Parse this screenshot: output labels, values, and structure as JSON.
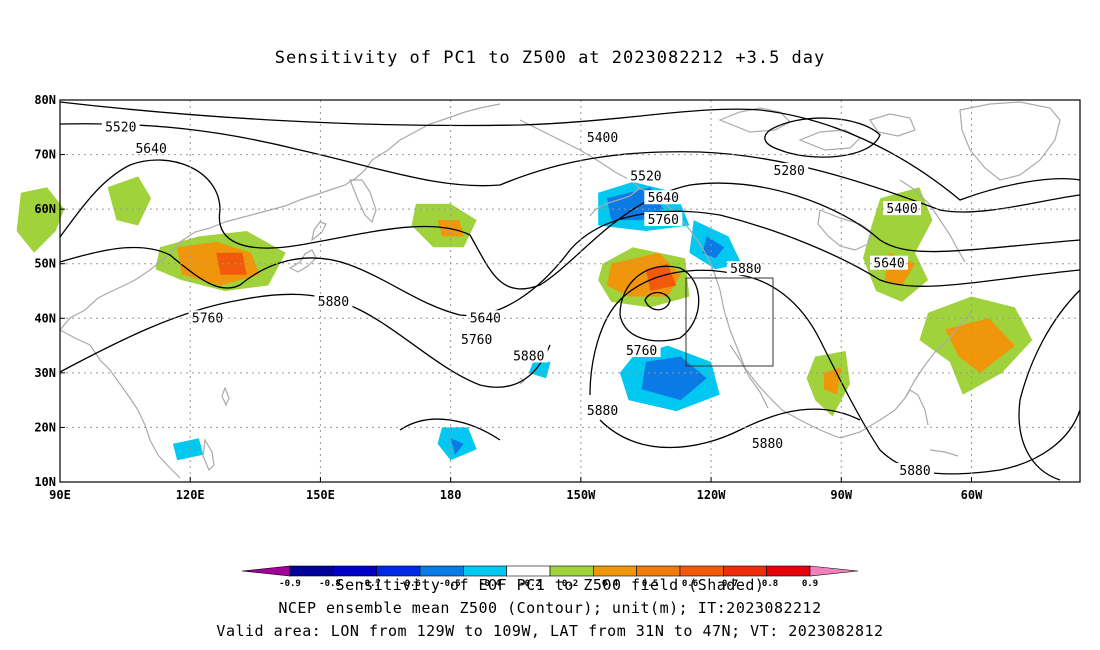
{
  "title": "Sensitivity of PC1 to Z500 at 2023082212 +3.5 day",
  "map": {
    "lon_labels": [
      "90E",
      "120E",
      "150E",
      "180",
      "150W",
      "120W",
      "90W",
      "60W"
    ],
    "lat_labels": [
      "80N",
      "70N",
      "60N",
      "50N",
      "40N",
      "30N",
      "20N",
      "10N"
    ],
    "contour_labels": [
      {
        "text": "5520",
        "lon": 104,
        "lat": 75
      },
      {
        "text": "5640",
        "lon": 111,
        "lat": 71
      },
      {
        "text": "5400",
        "lon": -145,
        "lat": 73
      },
      {
        "text": "5520",
        "lon": -135,
        "lat": 66
      },
      {
        "text": "5280",
        "lon": -102,
        "lat": 67
      },
      {
        "text": "5640",
        "lon": -131,
        "lat": 62
      },
      {
        "text": "5760",
        "lon": -131,
        "lat": 58
      },
      {
        "text": "5400",
        "lon": -76,
        "lat": 60
      },
      {
        "text": "5640",
        "lon": -79,
        "lat": 50
      },
      {
        "text": "5880",
        "lon": -112,
        "lat": 49
      },
      {
        "text": "5880",
        "lon": 153,
        "lat": 43
      },
      {
        "text": "5760",
        "lon": 124,
        "lat": 40
      },
      {
        "text": "5640",
        "lon": -172,
        "lat": 40
      },
      {
        "text": "5760",
        "lon": -174,
        "lat": 36
      },
      {
        "text": "5760",
        "lon": -136,
        "lat": 34
      },
      {
        "text": "5880",
        "lon": -162,
        "lat": 33
      },
      {
        "text": "5880",
        "lon": -145,
        "lat": 23
      },
      {
        "text": "5880",
        "lon": -107,
        "lat": 17
      },
      {
        "text": "5880",
        "lon": -73,
        "lat": 12
      }
    ],
    "shaded": [
      {
        "color": "#a0d23c",
        "points": [
          [
            81,
            63
          ],
          [
            87,
            64
          ],
          [
            91,
            60
          ],
          [
            89,
            56
          ],
          [
            84,
            52
          ],
          [
            80,
            56
          ]
        ]
      },
      {
        "color": "#a0d23c",
        "points": [
          [
            101,
            64
          ],
          [
            108,
            66
          ],
          [
            111,
            62
          ],
          [
            108,
            57
          ],
          [
            103,
            58
          ]
        ]
      },
      {
        "color": "#a0d23c",
        "points": [
          [
            113,
            53
          ],
          [
            122,
            55
          ],
          [
            133,
            56
          ],
          [
            142,
            52
          ],
          [
            138,
            46
          ],
          [
            128,
            45
          ],
          [
            118,
            47
          ],
          [
            112,
            49
          ]
        ]
      },
      {
        "color": "#f0960a",
        "points": [
          [
            117,
            53
          ],
          [
            126,
            54
          ],
          [
            134,
            52
          ],
          [
            136,
            48
          ],
          [
            127,
            46
          ],
          [
            118,
            48
          ]
        ]
      },
      {
        "color": "#f05a0a",
        "points": [
          [
            126,
            52
          ],
          [
            132,
            52
          ],
          [
            133,
            48
          ],
          [
            127,
            48
          ]
        ]
      },
      {
        "color": "#a0d23c",
        "points": [
          [
            172,
            61
          ],
          [
            180,
            61
          ],
          [
            186,
            58
          ],
          [
            183,
            53
          ],
          [
            176,
            53
          ],
          [
            171,
            57
          ]
        ]
      },
      {
        "color": "#f0960a",
        "points": [
          [
            177,
            58
          ],
          [
            182,
            58
          ],
          [
            183,
            55
          ],
          [
            178,
            55
          ]
        ]
      },
      {
        "color": "#00c8f0",
        "points": [
          [
            -146,
            63
          ],
          [
            -138,
            65
          ],
          [
            -128,
            63
          ],
          [
            -125,
            57
          ],
          [
            -135,
            56
          ],
          [
            -146,
            57
          ]
        ]
      },
      {
        "color": "#0a7ae6",
        "points": [
          [
            -144,
            62
          ],
          [
            -134,
            64
          ],
          [
            -131,
            60
          ],
          [
            -136,
            58
          ],
          [
            -143,
            58
          ]
        ]
      },
      {
        "color": "#00c8f0",
        "points": [
          [
            -124,
            58
          ],
          [
            -116,
            55
          ],
          [
            -113,
            50
          ],
          [
            -119,
            49
          ],
          [
            -125,
            52
          ]
        ]
      },
      {
        "color": "#0a7ae6",
        "points": [
          [
            -121,
            55
          ],
          [
            -117,
            53
          ],
          [
            -119,
            51
          ],
          [
            -122,
            52
          ]
        ]
      },
      {
        "color": "#a0d23c",
        "points": [
          [
            -145,
            50
          ],
          [
            -138,
            53
          ],
          [
            -126,
            51
          ],
          [
            -125,
            44
          ],
          [
            -134,
            42
          ],
          [
            -143,
            43
          ],
          [
            -146,
            47
          ]
        ]
      },
      {
        "color": "#f0960a",
        "points": [
          [
            -143,
            50
          ],
          [
            -132,
            52
          ],
          [
            -127,
            48
          ],
          [
            -130,
            44
          ],
          [
            -139,
            44
          ],
          [
            -144,
            46
          ]
        ]
      },
      {
        "color": "#f05a0a",
        "points": [
          [
            -135,
            49
          ],
          [
            -130,
            50
          ],
          [
            -128,
            46
          ],
          [
            -134,
            45
          ]
        ]
      },
      {
        "color": "#00c8f0",
        "points": [
          [
            -138,
            33
          ],
          [
            -130,
            35
          ],
          [
            -120,
            32
          ],
          [
            -118,
            26
          ],
          [
            -128,
            23
          ],
          [
            -139,
            25
          ],
          [
            -141,
            30
          ]
        ]
      },
      {
        "color": "#0a7ae6",
        "points": [
          [
            -135,
            32
          ],
          [
            -127,
            33
          ],
          [
            -121,
            29
          ],
          [
            -127,
            25
          ],
          [
            -136,
            27
          ]
        ]
      },
      {
        "color": "#00c8f0",
        "points": [
          [
            178,
            20
          ],
          [
            184,
            20
          ],
          [
            186,
            16
          ],
          [
            180,
            14
          ],
          [
            177,
            17
          ]
        ]
      },
      {
        "color": "#0a7ae6",
        "points": [
          [
            180,
            18
          ],
          [
            183,
            17
          ],
          [
            181,
            15
          ]
        ]
      },
      {
        "color": "#00c8f0",
        "points": [
          [
            116,
            17
          ],
          [
            122,
            18
          ],
          [
            123,
            15
          ],
          [
            117,
            14
          ]
        ]
      },
      {
        "color": "#00c8f0",
        "points": [
          [
            -161,
            32
          ],
          [
            -157,
            32
          ],
          [
            -158,
            29
          ],
          [
            -162,
            30
          ]
        ]
      },
      {
        "color": "#a0d23c",
        "points": [
          [
            -81,
            62
          ],
          [
            -72,
            64
          ],
          [
            -69,
            58
          ],
          [
            -73,
            52
          ],
          [
            -70,
            47
          ],
          [
            -76,
            43
          ],
          [
            -82,
            45
          ],
          [
            -85,
            51
          ],
          [
            -83,
            57
          ]
        ]
      },
      {
        "color": "#f0960a",
        "points": [
          [
            -79,
            52
          ],
          [
            -73,
            50
          ],
          [
            -76,
            46
          ],
          [
            -80,
            47
          ]
        ]
      },
      {
        "color": "#a0d23c",
        "points": [
          [
            -96,
            33
          ],
          [
            -89,
            34
          ],
          [
            -88,
            28
          ],
          [
            -92,
            22
          ],
          [
            -96,
            25
          ],
          [
            -98,
            29
          ]
        ]
      },
      {
        "color": "#f0960a",
        "points": [
          [
            -94,
            30
          ],
          [
            -90,
            31
          ],
          [
            -91,
            26
          ],
          [
            -94,
            27
          ]
        ]
      },
      {
        "color": "#a0d23c",
        "points": [
          [
            -70,
            41
          ],
          [
            -60,
            44
          ],
          [
            -50,
            42
          ],
          [
            -46,
            36
          ],
          [
            -53,
            30
          ],
          [
            -62,
            26
          ],
          [
            -65,
            32
          ],
          [
            -72,
            36
          ]
        ]
      },
      {
        "color": "#f0960a",
        "points": [
          [
            -66,
            38
          ],
          [
            -56,
            40
          ],
          [
            -50,
            35
          ],
          [
            -58,
            30
          ],
          [
            -63,
            33
          ]
        ]
      }
    ]
  },
  "colorbar": {
    "colors": [
      "#a00096",
      "#00009b",
      "#0000c8",
      "#0028e6",
      "#0a7ae6",
      "#00c8f0",
      "#ffffff",
      "#a0d23c",
      "#f0960a",
      "#f07a0a",
      "#f05a0a",
      "#f02d0a",
      "#e6000a",
      "#ee82bd"
    ],
    "labels": [
      "-0.9",
      "-0.8",
      "-0.7",
      "-0.6",
      "-0.5",
      "-0.4",
      "-0.2",
      "0.2",
      "0.4",
      "0.5",
      "0.6",
      "0.7",
      "0.8",
      "0.9"
    ]
  },
  "footer": {
    "line1": "Sensitivity of EOF PC1 to Z500 field (Shaded)",
    "line2": "NCEP ensemble mean Z500 (Contour); unit(m); IT:2023082212",
    "line3": "Valid area: LON from 129W to 109W, LAT from 31N to 47N; VT: 2023082812"
  }
}
